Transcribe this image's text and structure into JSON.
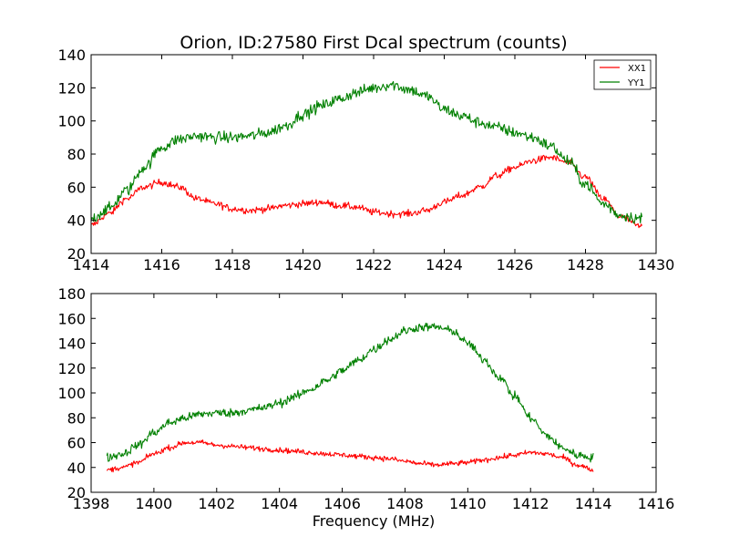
{
  "chart_data": [
    {
      "type": "line",
      "title": "Orion, ID:27580 First Dcal spectrum (counts)",
      "xlabel": "",
      "ylabel": "",
      "xlim": [
        1414,
        1430
      ],
      "ylim": [
        20,
        140
      ],
      "xticks": [
        "1414",
        "1416",
        "1418",
        "1420",
        "1422",
        "1424",
        "1426",
        "1428",
        "1430"
      ],
      "yticks": [
        "20",
        "40",
        "60",
        "80",
        "100",
        "120",
        "140"
      ],
      "legend": {
        "placement": "top-right",
        "entries": [
          "XX1",
          "YY1"
        ]
      },
      "grid": false,
      "series": [
        {
          "name": "XX1",
          "color": "#ff0000",
          "noise": 1.5,
          "x": [
            1414.0,
            1414.5,
            1415.0,
            1415.5,
            1416.0,
            1416.5,
            1417.0,
            1417.5,
            1418.0,
            1418.5,
            1419.0,
            1419.5,
            1420.0,
            1420.5,
            1421.0,
            1421.5,
            1422.0,
            1422.5,
            1423.0,
            1423.5,
            1424.0,
            1424.5,
            1425.0,
            1425.5,
            1426.0,
            1426.5,
            1427.0,
            1427.5,
            1428.0,
            1428.5,
            1429.0,
            1429.6
          ],
          "values": [
            37,
            44,
            53,
            60,
            63,
            60,
            53,
            50,
            47,
            46,
            47,
            49,
            50,
            51,
            49,
            48,
            45,
            44,
            44,
            46,
            51,
            55,
            60,
            67,
            72,
            76,
            78,
            75,
            66,
            53,
            42,
            36
          ]
        },
        {
          "name": "YY1",
          "color": "#008000",
          "noise": 2.5,
          "x": [
            1414.0,
            1414.5,
            1415.0,
            1415.5,
            1416.0,
            1416.5,
            1417.0,
            1417.5,
            1418.0,
            1418.5,
            1419.0,
            1419.5,
            1420.0,
            1420.5,
            1421.0,
            1421.5,
            1422.0,
            1422.5,
            1423.0,
            1423.5,
            1424.0,
            1424.5,
            1425.0,
            1425.5,
            1426.0,
            1426.5,
            1427.0,
            1427.5,
            1428.0,
            1428.5,
            1429.0,
            1429.6
          ],
          "values": [
            41,
            47,
            58,
            72,
            84,
            89,
            91,
            90,
            90,
            91,
            93,
            97,
            104,
            109,
            113,
            117,
            120,
            122,
            119,
            115,
            107,
            103,
            99,
            96,
            93,
            90,
            85,
            76,
            62,
            50,
            43,
            41
          ]
        }
      ]
    },
    {
      "type": "line",
      "title": "",
      "xlabel": "Frequency (MHz)",
      "ylabel": "",
      "xlim": [
        1398,
        1416
      ],
      "ylim": [
        20,
        180
      ],
      "xticks": [
        "1398",
        "1400",
        "1402",
        "1404",
        "1406",
        "1408",
        "1410",
        "1412",
        "1414",
        "1416"
      ],
      "yticks": [
        "20",
        "40",
        "60",
        "80",
        "100",
        "120",
        "140",
        "160",
        "180"
      ],
      "grid": false,
      "series": [
        {
          "name": "XX1",
          "color": "#ff0000",
          "noise": 1.5,
          "x": [
            1398.5,
            1399.0,
            1399.5,
            1400.0,
            1400.5,
            1401.0,
            1401.5,
            1402.0,
            1402.5,
            1403.0,
            1403.5,
            1404.0,
            1404.5,
            1405.0,
            1405.5,
            1406.0,
            1406.5,
            1407.0,
            1407.5,
            1408.0,
            1408.5,
            1409.0,
            1409.5,
            1410.0,
            1410.5,
            1411.0,
            1411.5,
            1412.0,
            1412.5,
            1413.0,
            1413.5,
            1414.0
          ],
          "values": [
            38,
            40,
            44,
            51,
            56,
            60,
            60,
            58,
            57,
            56,
            55,
            54,
            53,
            52,
            51,
            50,
            49,
            48,
            47,
            45,
            43,
            42,
            43,
            44,
            46,
            48,
            50,
            52,
            51,
            48,
            42,
            38
          ]
        },
        {
          "name": "YY1",
          "color": "#008000",
          "noise": 2.5,
          "x": [
            1398.5,
            1399.0,
            1399.5,
            1400.0,
            1400.5,
            1401.0,
            1401.5,
            1402.0,
            1402.5,
            1403.0,
            1403.5,
            1404.0,
            1404.5,
            1405.0,
            1405.5,
            1406.0,
            1406.5,
            1407.0,
            1407.5,
            1408.0,
            1408.5,
            1409.0,
            1409.5,
            1410.0,
            1410.5,
            1411.0,
            1411.5,
            1412.0,
            1412.5,
            1413.0,
            1413.5,
            1414.0
          ],
          "values": [
            48,
            51,
            58,
            68,
            76,
            80,
            83,
            84,
            84,
            86,
            88,
            92,
            97,
            103,
            110,
            118,
            126,
            135,
            143,
            150,
            153,
            153,
            150,
            140,
            127,
            113,
            97,
            80,
            66,
            56,
            50,
            48
          ]
        }
      ]
    }
  ]
}
